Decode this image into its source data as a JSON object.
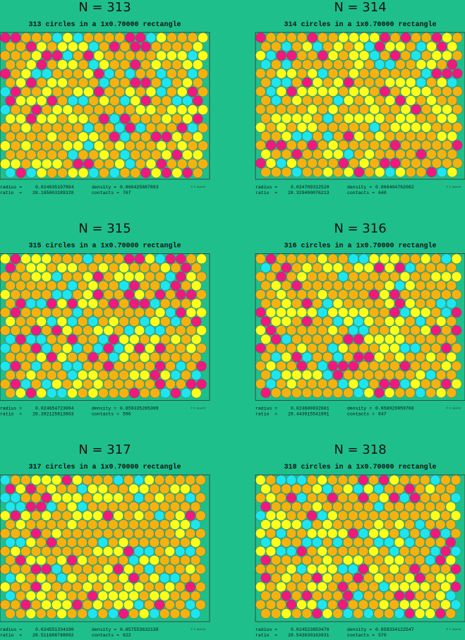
{
  "panels": [
    {
      "title": "N = 313",
      "subtitle": "313 circles in a 1x0.70000 rectangle",
      "radius_label": "radius =",
      "radius": "0.024835197894",
      "density_label": "density =",
      "density": "0.866425887893",
      "ratio_label": "ratio  =",
      "ratio": "28.185803189328",
      "contacts_label": "contacts =",
      "contacts": "767",
      "credit": "© E. Specht"
    },
    {
      "title": "N = 314",
      "subtitle": "314 circles in a 1x0.70000 rectangle",
      "radius_label": "radius =",
      "radius": "0.024709312520",
      "density_label": "density =",
      "density": "0.860404762082",
      "ratio_label": "ratio  =",
      "ratio": "28.329400076213",
      "contacts_label": "contacts =",
      "contacts": "640",
      "credit": "© E. Specht"
    },
    {
      "title": "N = 315",
      "subtitle": "315 circles in a 1x0.70000 rectangle",
      "radius_label": "radius =",
      "radius": "0.024654723094",
      "density_label": "density =",
      "density": "0.859335285389",
      "ratio_label": "ratio  =",
      "ratio": "28.392125813863",
      "contacts_label": "contacts =",
      "contacts": "596",
      "credit": "© E. Specht"
    },
    {
      "title": "N = 316",
      "subtitle": "316 circles in a 1x0.70000 rectangle",
      "radius_label": "radius =",
      "radius": "0.024609832601",
      "density_label": "density =",
      "density": "0.858926959766",
      "ratio_label": "ratio  =",
      "ratio": "28.443915541991",
      "contacts_label": "contacts =",
      "contacts": "647",
      "credit": "© E. Specht"
    },
    {
      "title": "N = 317",
      "subtitle": "317 circles in a 1x0.70000 rectangle",
      "radius_label": "radius =",
      "radius": "0.024551334190",
      "density_label": "density =",
      "density": "0.857553632138",
      "ratio_label": "ratio  =",
      "ratio": "28.511688798092",
      "contacts_label": "contacts =",
      "contacts": "622",
      "credit": "© E. Specht"
    },
    {
      "title": "N = 318",
      "subtitle": "318 circles in a 1x0.70000 rectangle",
      "radius_label": "radius =",
      "radius": "0.024523853476",
      "density_label": "density =",
      "density": "0.858334122547",
      "ratio_label": "ratio  =",
      "ratio": "28.543630163931",
      "contacts_label": "contacts =",
      "contacts": "570",
      "credit": "© E. Specht"
    }
  ]
}
